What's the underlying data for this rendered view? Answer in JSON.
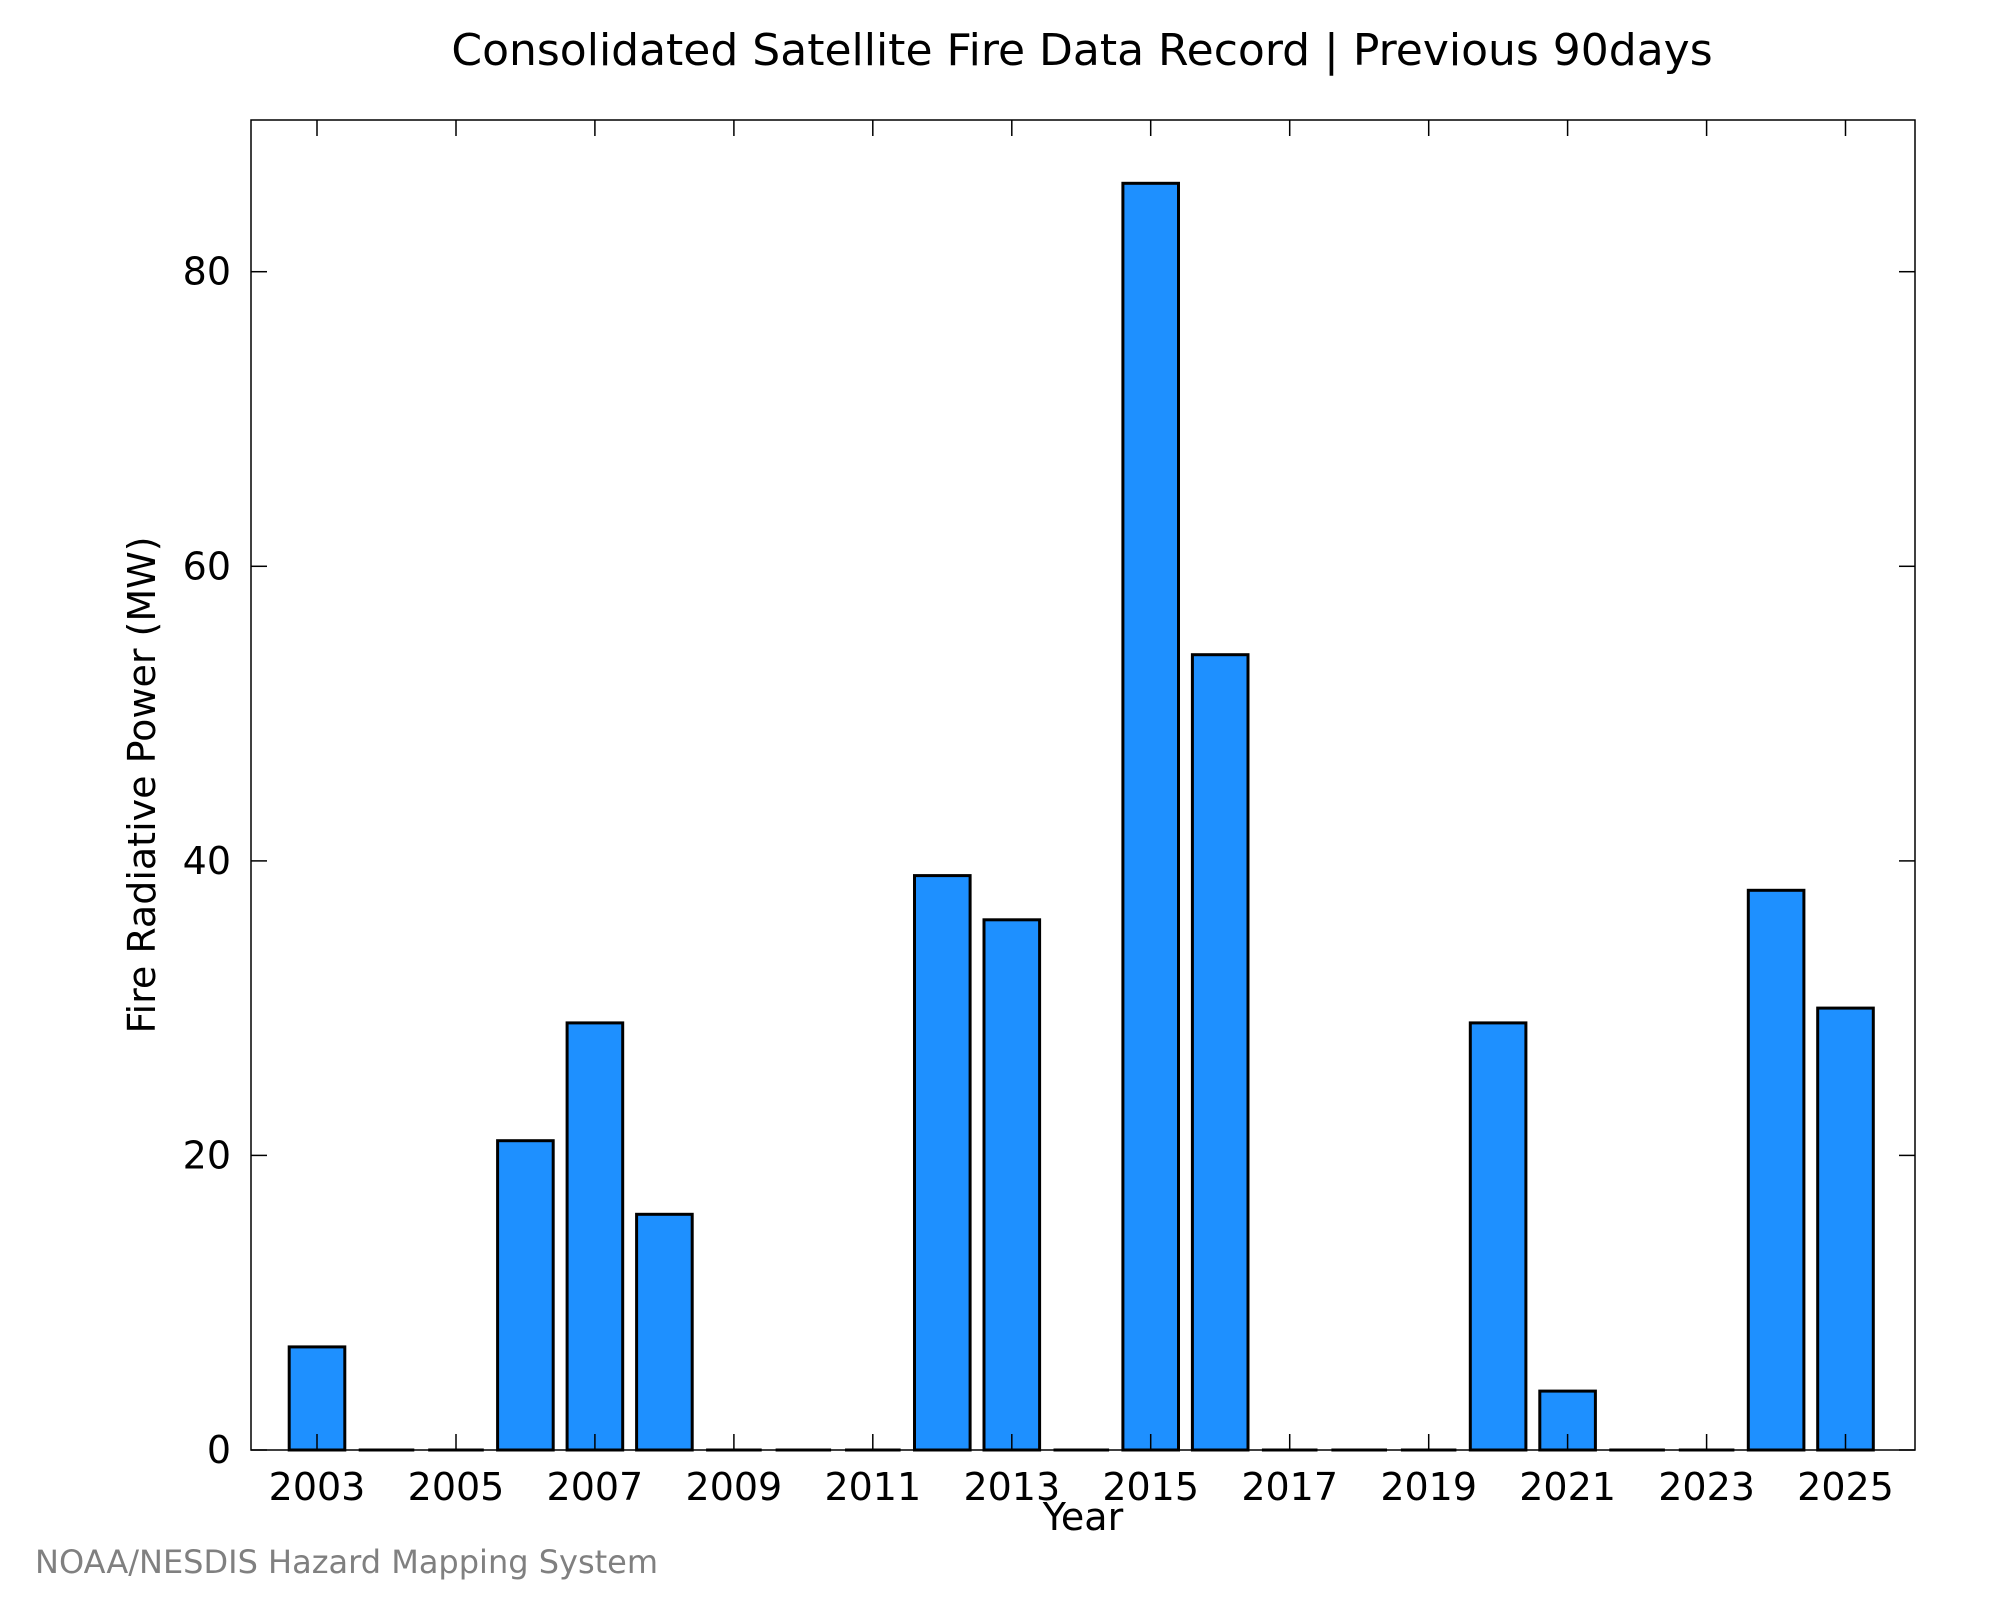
{
  "chart_data": {
    "type": "bar",
    "title": "Consolidated Satellite Fire Data Record | Previous 90days",
    "xlabel": "Year",
    "ylabel": "Fire Radiative Power (MW)",
    "categories": [
      2003,
      2004,
      2005,
      2006,
      2007,
      2008,
      2009,
      2010,
      2011,
      2012,
      2013,
      2014,
      2015,
      2016,
      2017,
      2018,
      2019,
      2020,
      2021,
      2022,
      2023,
      2024,
      2025
    ],
    "values": [
      7,
      0,
      0,
      21,
      29,
      16,
      0,
      0,
      0,
      39,
      36,
      0,
      86,
      54,
      0,
      0,
      0,
      29,
      4,
      0,
      0,
      38,
      30
    ],
    "x_ticks": [
      2003,
      2005,
      2007,
      2009,
      2011,
      2013,
      2015,
      2017,
      2019,
      2021,
      2023,
      2025
    ],
    "y_ticks": [
      0,
      20,
      40,
      60,
      80
    ],
    "ylim": [
      0,
      90.3
    ],
    "xlim": [
      2002.05,
      2026
    ],
    "grid": false,
    "legend": "none",
    "bar_color": "#1e90ff",
    "edge_color": "#000000"
  },
  "credit": "NOAA/NESDIS Hazard Mapping System"
}
